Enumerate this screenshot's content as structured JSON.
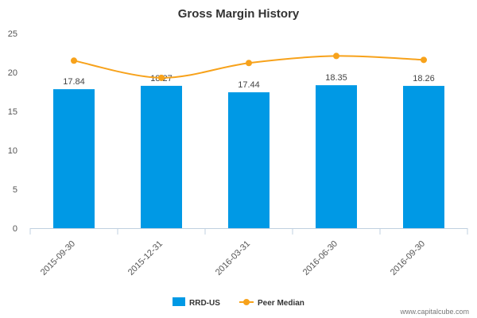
{
  "chart_data": {
    "type": "bar",
    "title": "Gross Margin History",
    "categories": [
      "2015-09-30",
      "2015-12-31",
      "2016-03-31",
      "2016-06-30",
      "2016-09-30"
    ],
    "series": [
      {
        "name": "RRD-US",
        "type": "bar",
        "color": "#0099e5",
        "values": [
          17.84,
          18.27,
          17.44,
          18.35,
          18.26
        ],
        "labels": [
          "17.84",
          "18.27",
          "17.44",
          "18.35",
          "18.26"
        ]
      },
      {
        "name": "Peer Median",
        "type": "line",
        "color": "#f7a21b",
        "values": [
          21.5,
          19.3,
          21.2,
          22.1,
          21.6
        ]
      }
    ],
    "yticks": [
      "0",
      "5",
      "10",
      "15",
      "20",
      "25"
    ],
    "ylim": [
      0,
      25
    ],
    "grid": false,
    "legend": "bottom-center"
  },
  "watermark": "www.capitalcube.com"
}
